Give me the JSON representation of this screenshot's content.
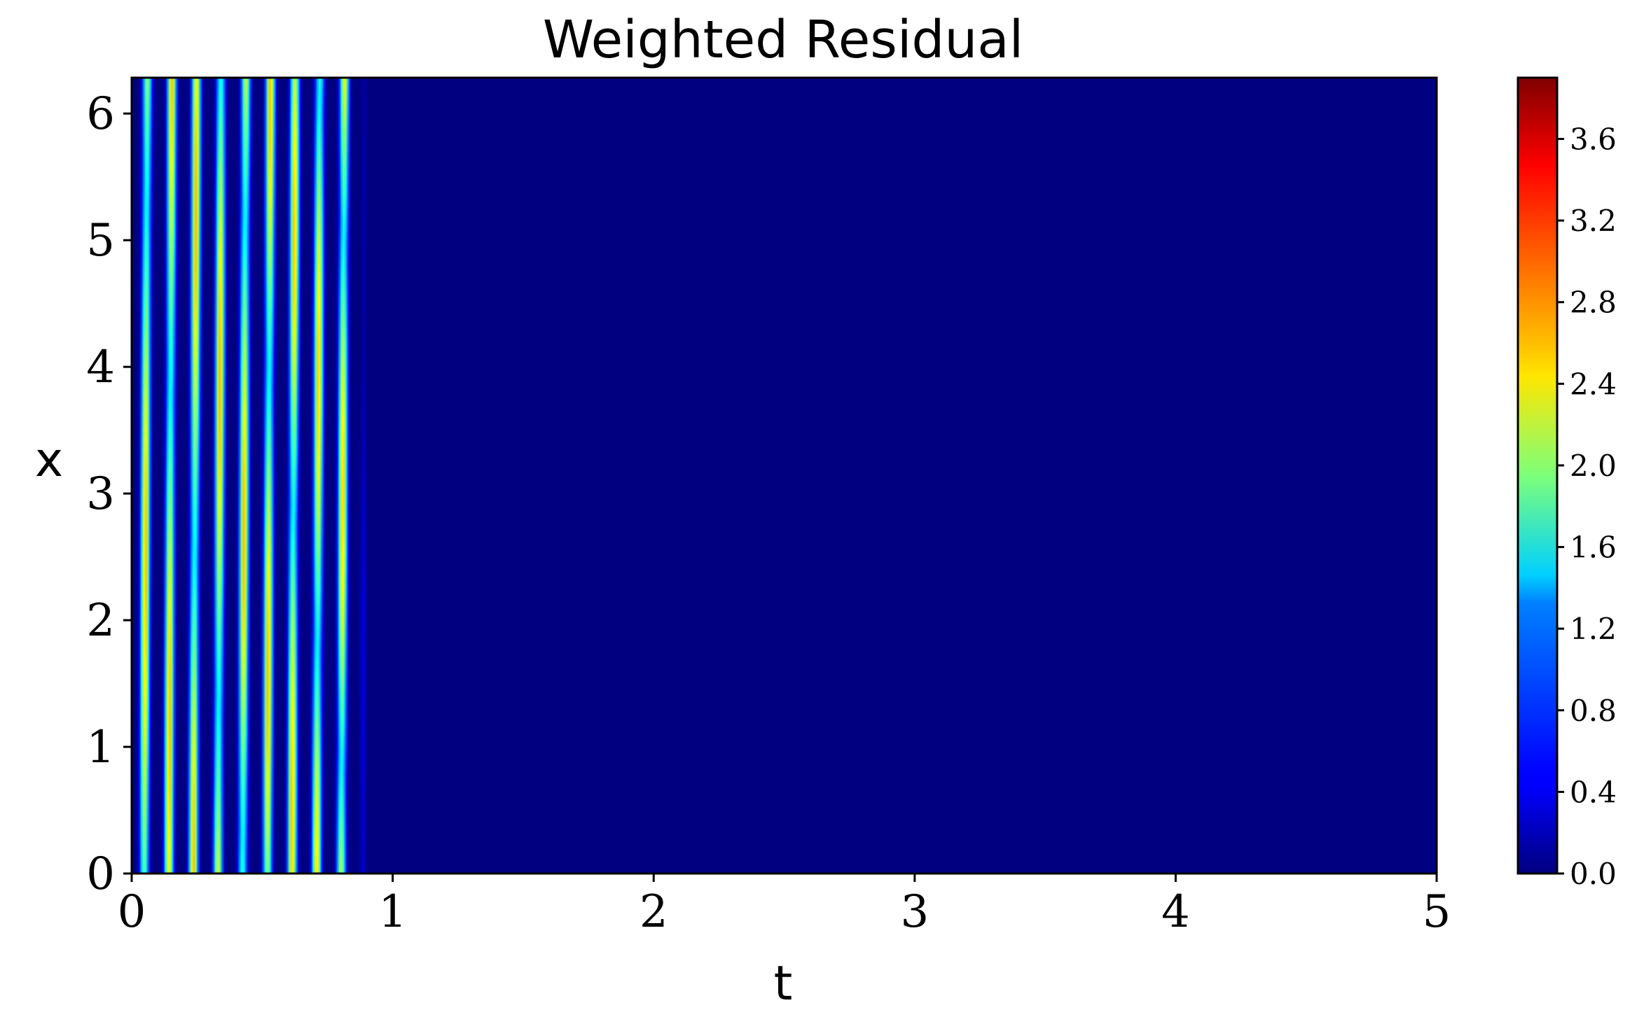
{
  "chart_data": {
    "type": "heatmap",
    "title": "Weighted Residual",
    "xlabel": "t",
    "ylabel": "x",
    "xlim": [
      0,
      5
    ],
    "ylim": [
      0,
      6.283
    ],
    "x_ticks": [
      "0",
      "1",
      "2",
      "3",
      "4",
      "5"
    ],
    "y_ticks": [
      "0",
      "1",
      "2",
      "3",
      "4",
      "5",
      "6"
    ],
    "colormap": "jet",
    "colorbar": {
      "min": 0.0,
      "max": 3.9,
      "ticks": [
        "0.0",
        "0.4",
        "0.8",
        "1.2",
        "1.6",
        "2.0",
        "2.4",
        "2.8",
        "3.2",
        "3.6"
      ]
    },
    "residual_region": {
      "t_start": 0,
      "t_end": 0.85,
      "stripe_count": 9,
      "peak_value": 2.7,
      "background_value": 0.0
    },
    "grid": false
  }
}
